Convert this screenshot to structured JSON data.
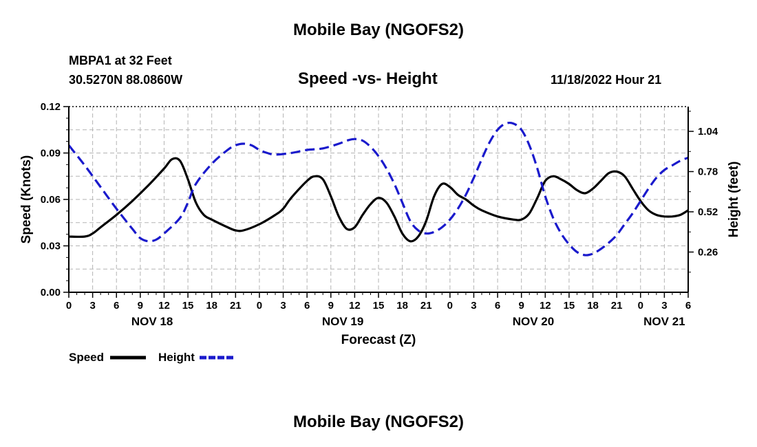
{
  "header": {
    "title": "Mobile Bay (NGOFS2)",
    "station": "MBPA1 at 32 Feet",
    "coordinates": "30.5270N  88.0860W",
    "subtitle": "Speed -vs- Height",
    "timestamp": "11/18/2022 Hour 21"
  },
  "footer": {
    "title": "Mobile Bay (NGOFS2)"
  },
  "chart_data": {
    "type": "line",
    "title": "Speed -vs- Height",
    "xlabel": "Forecast (Z)",
    "ylabel_left": "Speed (Knots)",
    "ylabel_right": "Height (feet)",
    "xlim": [
      0,
      78
    ],
    "ylim_left": [
      0,
      0.12
    ],
    "ylim_right": [
      0.0,
      1.2
    ],
    "grid": true,
    "left_ticks": [
      {
        "value": 0.0,
        "label": "0.00"
      },
      {
        "value": 0.03,
        "label": "0.03"
      },
      {
        "value": 0.06,
        "label": "0.06"
      },
      {
        "value": 0.09,
        "label": "0.09"
      },
      {
        "value": 0.12,
        "label": "0.12"
      }
    ],
    "right_ticks": [
      {
        "value": 0.26,
        "label": "0.26"
      },
      {
        "value": 0.52,
        "label": "0.52"
      },
      {
        "value": 0.78,
        "label": "0.78"
      },
      {
        "value": 1.04,
        "label": "1.04"
      }
    ],
    "x_tick_labels": [
      "0",
      "3",
      "6",
      "9",
      "12",
      "15",
      "18",
      "21",
      "0",
      "3",
      "6",
      "9",
      "12",
      "15",
      "18",
      "21",
      "0",
      "3",
      "6",
      "9",
      "12",
      "15",
      "18",
      "21",
      "0",
      "3",
      "6"
    ],
    "day_labels": [
      {
        "hour": 10.5,
        "label": "NOV 18"
      },
      {
        "hour": 34.5,
        "label": "NOV 19"
      },
      {
        "hour": 58.5,
        "label": "NOV 20"
      },
      {
        "hour": 75,
        "label": "NOV 21"
      }
    ],
    "legend": {
      "position": "bottom-left"
    },
    "series": [
      {
        "name": "Speed",
        "axis": "left",
        "color": "#000000",
        "style": "solid",
        "points": [
          [
            0,
            0.036
          ],
          [
            2,
            0.036
          ],
          [
            3,
            0.038
          ],
          [
            4,
            0.042
          ],
          [
            6,
            0.05
          ],
          [
            8,
            0.059
          ],
          [
            10,
            0.069
          ],
          [
            12,
            0.08
          ],
          [
            13,
            0.086
          ],
          [
            14,
            0.085
          ],
          [
            15,
            0.073
          ],
          [
            16,
            0.058
          ],
          [
            17,
            0.05
          ],
          [
            18,
            0.047
          ],
          [
            20,
            0.042
          ],
          [
            21,
            0.04
          ],
          [
            22,
            0.04
          ],
          [
            24,
            0.044
          ],
          [
            26,
            0.05
          ],
          [
            27,
            0.054
          ],
          [
            28,
            0.061
          ],
          [
            30,
            0.072
          ],
          [
            31,
            0.075
          ],
          [
            32,
            0.073
          ],
          [
            33,
            0.062
          ],
          [
            34,
            0.049
          ],
          [
            35,
            0.041
          ],
          [
            36,
            0.042
          ],
          [
            37,
            0.05
          ],
          [
            38,
            0.057
          ],
          [
            39,
            0.061
          ],
          [
            40,
            0.058
          ],
          [
            41,
            0.049
          ],
          [
            42,
            0.038
          ],
          [
            43,
            0.033
          ],
          [
            44,
            0.036
          ],
          [
            45,
            0.046
          ],
          [
            46,
            0.062
          ],
          [
            47,
            0.07
          ],
          [
            48,
            0.068
          ],
          [
            49,
            0.063
          ],
          [
            50,
            0.06
          ],
          [
            51,
            0.056
          ],
          [
            52,
            0.053
          ],
          [
            54,
            0.049
          ],
          [
            56,
            0.047
          ],
          [
            57,
            0.047
          ],
          [
            58,
            0.051
          ],
          [
            59,
            0.061
          ],
          [
            60,
            0.072
          ],
          [
            61,
            0.075
          ],
          [
            62,
            0.073
          ],
          [
            63,
            0.07
          ],
          [
            64,
            0.066
          ],
          [
            65,
            0.064
          ],
          [
            66,
            0.067
          ],
          [
            67,
            0.072
          ],
          [
            68,
            0.077
          ],
          [
            69,
            0.078
          ],
          [
            70,
            0.075
          ],
          [
            71,
            0.067
          ],
          [
            72,
            0.059
          ],
          [
            73,
            0.053
          ],
          [
            74,
            0.05
          ],
          [
            75,
            0.049
          ],
          [
            76,
            0.049
          ],
          [
            77,
            0.05
          ],
          [
            78,
            0.053
          ]
        ]
      },
      {
        "name": "Height",
        "axis": "right",
        "color": "#1a1acc",
        "style": "dashed",
        "points": [
          [
            0,
            0.95
          ],
          [
            2,
            0.82
          ],
          [
            4,
            0.68
          ],
          [
            6,
            0.54
          ],
          [
            8,
            0.41
          ],
          [
            9,
            0.35
          ],
          [
            10,
            0.33
          ],
          [
            11,
            0.34
          ],
          [
            12,
            0.38
          ],
          [
            14,
            0.48
          ],
          [
            15,
            0.58
          ],
          [
            16,
            0.7
          ],
          [
            18,
            0.83
          ],
          [
            20,
            0.92
          ],
          [
            21,
            0.95
          ],
          [
            22,
            0.96
          ],
          [
            23,
            0.95
          ],
          [
            24,
            0.92
          ],
          [
            25,
            0.9
          ],
          [
            26,
            0.89
          ],
          [
            28,
            0.9
          ],
          [
            30,
            0.92
          ],
          [
            32,
            0.93
          ],
          [
            34,
            0.96
          ],
          [
            35,
            0.98
          ],
          [
            36,
            0.99
          ],
          [
            37,
            0.98
          ],
          [
            38,
            0.94
          ],
          [
            39,
            0.88
          ],
          [
            40,
            0.8
          ],
          [
            41,
            0.7
          ],
          [
            42,
            0.58
          ],
          [
            43,
            0.46
          ],
          [
            44,
            0.4
          ],
          [
            45,
            0.38
          ],
          [
            46,
            0.39
          ],
          [
            47,
            0.42
          ],
          [
            48,
            0.47
          ],
          [
            49,
            0.54
          ],
          [
            50,
            0.63
          ],
          [
            51,
            0.74
          ],
          [
            52,
            0.86
          ],
          [
            53,
            0.97
          ],
          [
            54,
            1.05
          ],
          [
            55,
            1.09
          ],
          [
            56,
            1.09
          ],
          [
            57,
            1.05
          ],
          [
            58,
            0.95
          ],
          [
            59,
            0.8
          ],
          [
            60,
            0.62
          ],
          [
            61,
            0.48
          ],
          [
            62,
            0.38
          ],
          [
            63,
            0.31
          ],
          [
            64,
            0.26
          ],
          [
            65,
            0.24
          ],
          [
            66,
            0.25
          ],
          [
            67,
            0.28
          ],
          [
            68,
            0.32
          ],
          [
            69,
            0.37
          ],
          [
            70,
            0.44
          ],
          [
            71,
            0.51
          ],
          [
            72,
            0.59
          ],
          [
            73,
            0.67
          ],
          [
            74,
            0.74
          ],
          [
            75,
            0.79
          ],
          [
            76,
            0.82
          ],
          [
            77,
            0.85
          ],
          [
            78,
            0.87
          ]
        ]
      }
    ]
  }
}
